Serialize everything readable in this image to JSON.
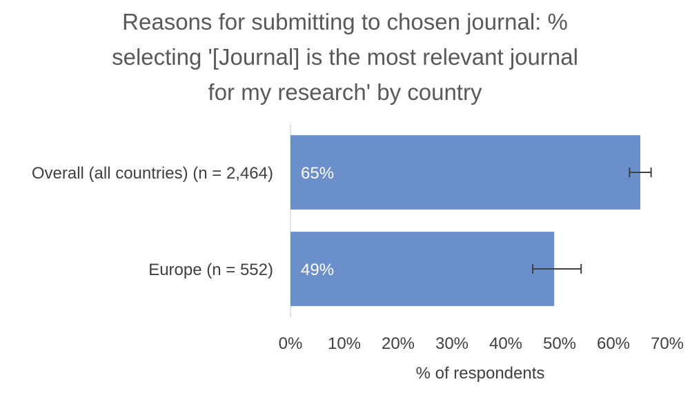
{
  "chart_data": {
    "type": "bar",
    "orientation": "horizontal",
    "title_lines": [
      "Reasons for submitting to chosen journal: %",
      "selecting '[Journal] is the most relevant journal",
      "for my research' by country"
    ],
    "categories": [
      "Overall (all countries) (n = 2,464)",
      "Europe (n = 552)"
    ],
    "values": [
      65,
      49
    ],
    "data_labels": [
      "65%",
      "49%"
    ],
    "error_low": [
      63,
      45
    ],
    "error_high": [
      67,
      54
    ],
    "xlabel": "% of respondents",
    "ylabel": "",
    "xlim": [
      0,
      70
    ],
    "x_ticks": [
      "0%",
      "10%",
      "20%",
      "30%",
      "40%",
      "50%",
      "60%",
      "70%"
    ],
    "grid": false,
    "colors": {
      "bar": "#6a8fcb",
      "error_bar": "#404040",
      "axis": "#d9d9d9"
    }
  }
}
